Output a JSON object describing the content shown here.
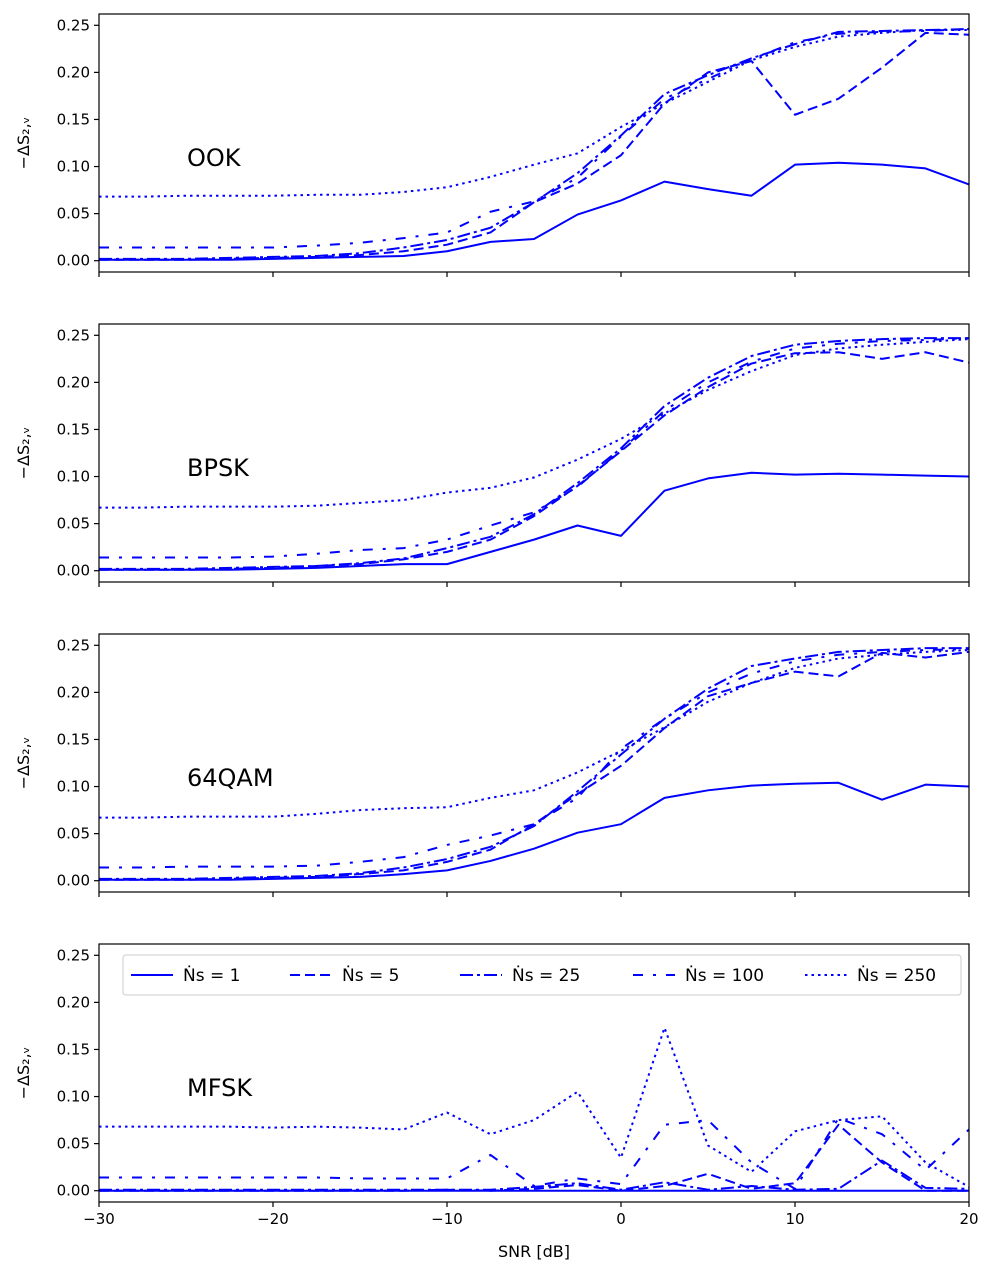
{
  "chart_data": {
    "type": "line",
    "xlabel": "SNR [dB]",
    "ylabel": "−ΔS₂,ᵥ",
    "xlim": [
      -30,
      20
    ],
    "ylim": [
      -0.012,
      0.262
    ],
    "xticks": [
      -30,
      -20,
      -10,
      0,
      10,
      20
    ],
    "xtick_labels": [
      "−30",
      "−20",
      "−10",
      "0",
      "10",
      "20"
    ],
    "yticks": [
      0.0,
      0.05,
      0.1,
      0.15,
      0.2,
      0.25
    ],
    "ytick_labels": [
      "0.00",
      "0.05",
      "0.10",
      "0.15",
      "0.20",
      "0.25"
    ],
    "x": [
      -30,
      -27.5,
      -25,
      -22.5,
      -20,
      -17.5,
      -15,
      -12.5,
      -10,
      -7.5,
      -5,
      -2.5,
      0,
      2.5,
      5,
      7.5,
      10,
      12.5,
      15,
      17.5,
      20
    ],
    "color": "#0000ff",
    "legend": {
      "location": "top",
      "entries": [
        {
          "label": "Ṅs = 1",
          "style": "solid"
        },
        {
          "label": "Ṅs = 5",
          "style": "dashed"
        },
        {
          "label": "Ṅs = 25",
          "style": "dashdot"
        },
        {
          "label": "Ṅs = 100",
          "style": "loosedashdot"
        },
        {
          "label": "Ṅs = 250",
          "style": "dotted"
        }
      ]
    },
    "panels": [
      {
        "label": "OOK",
        "series": [
          {
            "name": "Ns = 1",
            "values": [
              0.001,
              0.001,
              0.001,
              0.001,
              0.002,
              0.003,
              0.004,
              0.005,
              0.01,
              0.02,
              0.023,
              0.049,
              0.064,
              0.084,
              0.076,
              0.069,
              0.102,
              0.104,
              0.102,
              0.098,
              0.081
            ]
          },
          {
            "name": "Ns = 5",
            "values": [
              0.001,
              0.001,
              0.001,
              0.002,
              0.003,
              0.004,
              0.006,
              0.01,
              0.017,
              0.03,
              0.062,
              0.082,
              0.112,
              0.167,
              0.2,
              0.212,
              0.155,
              0.172,
              0.205,
              0.242,
              0.24
            ]
          },
          {
            "name": "Ns = 25",
            "values": [
              0.002,
              0.002,
              0.002,
              0.003,
              0.004,
              0.005,
              0.008,
              0.014,
              0.022,
              0.035,
              0.062,
              0.093,
              0.133,
              0.177,
              0.197,
              0.215,
              0.23,
              0.243,
              0.244,
              0.245,
              0.246
            ]
          },
          {
            "name": "Ns = 100",
            "values": [
              0.014,
              0.014,
              0.014,
              0.014,
              0.014,
              0.016,
              0.019,
              0.024,
              0.03,
              0.052,
              0.063,
              0.088,
              0.132,
              0.172,
              0.193,
              0.214,
              0.232,
              0.241,
              0.243,
              0.244,
              0.246
            ]
          },
          {
            "name": "Ns = 250",
            "values": [
              0.068,
              0.068,
              0.069,
              0.069,
              0.069,
              0.07,
              0.07,
              0.073,
              0.078,
              0.089,
              0.102,
              0.114,
              0.142,
              0.167,
              0.19,
              0.213,
              0.227,
              0.238,
              0.242,
              0.245,
              0.245
            ]
          }
        ]
      },
      {
        "label": "BPSK",
        "series": [
          {
            "name": "Ns = 1",
            "values": [
              0.001,
              0.001,
              0.001,
              0.001,
              0.002,
              0.003,
              0.005,
              0.007,
              0.007,
              0.02,
              0.033,
              0.048,
              0.037,
              0.085,
              0.098,
              0.104,
              0.102,
              0.103,
              0.102,
              0.101,
              0.1
            ]
          },
          {
            "name": "Ns = 5",
            "values": [
              0.001,
              0.001,
              0.001,
              0.002,
              0.003,
              0.005,
              0.007,
              0.012,
              0.02,
              0.033,
              0.058,
              0.09,
              0.127,
              0.165,
              0.195,
              0.22,
              0.231,
              0.232,
              0.225,
              0.232,
              0.221
            ]
          },
          {
            "name": "Ns = 25",
            "values": [
              0.002,
              0.002,
              0.002,
              0.003,
              0.004,
              0.005,
              0.008,
              0.013,
              0.024,
              0.036,
              0.06,
              0.093,
              0.13,
              0.175,
              0.205,
              0.228,
              0.24,
              0.244,
              0.246,
              0.247,
              0.247
            ]
          },
          {
            "name": "Ns = 100",
            "values": [
              0.014,
              0.014,
              0.014,
              0.014,
              0.015,
              0.018,
              0.022,
              0.024,
              0.033,
              0.048,
              0.062,
              0.089,
              0.128,
              0.17,
              0.2,
              0.222,
              0.236,
              0.241,
              0.244,
              0.245,
              0.247
            ]
          },
          {
            "name": "Ns = 250",
            "values": [
              0.067,
              0.067,
              0.068,
              0.068,
              0.068,
              0.069,
              0.072,
              0.075,
              0.083,
              0.088,
              0.099,
              0.118,
              0.14,
              0.167,
              0.192,
              0.212,
              0.229,
              0.236,
              0.24,
              0.243,
              0.246
            ]
          }
        ]
      },
      {
        "label": "64QAM",
        "series": [
          {
            "name": "Ns = 1",
            "values": [
              0.001,
              0.001,
              0.001,
              0.001,
              0.002,
              0.003,
              0.004,
              0.007,
              0.011,
              0.021,
              0.034,
              0.051,
              0.06,
              0.088,
              0.096,
              0.101,
              0.103,
              0.104,
              0.086,
              0.102,
              0.1
            ]
          },
          {
            "name": "Ns = 5",
            "values": [
              0.001,
              0.001,
              0.001,
              0.002,
              0.003,
              0.004,
              0.007,
              0.011,
              0.02,
              0.033,
              0.06,
              0.092,
              0.122,
              0.162,
              0.196,
              0.21,
              0.222,
              0.217,
              0.242,
              0.237,
              0.243
            ]
          },
          {
            "name": "Ns = 25",
            "values": [
              0.002,
              0.002,
              0.002,
              0.003,
              0.004,
              0.005,
              0.008,
              0.014,
              0.023,
              0.036,
              0.058,
              0.095,
              0.134,
              0.172,
              0.204,
              0.228,
              0.236,
              0.243,
              0.245,
              0.247,
              0.247
            ]
          },
          {
            "name": "Ns = 100",
            "values": [
              0.014,
              0.014,
              0.015,
              0.015,
              0.015,
              0.016,
              0.02,
              0.025,
              0.038,
              0.048,
              0.06,
              0.088,
              0.14,
              0.172,
              0.2,
              0.22,
              0.233,
              0.24,
              0.243,
              0.245,
              0.246
            ]
          },
          {
            "name": "Ns = 250",
            "values": [
              0.067,
              0.067,
              0.068,
              0.068,
              0.068,
              0.071,
              0.075,
              0.077,
              0.078,
              0.088,
              0.096,
              0.115,
              0.138,
              0.163,
              0.19,
              0.21,
              0.226,
              0.236,
              0.24,
              0.243,
              0.245
            ]
          }
        ]
      },
      {
        "label": "MFSK",
        "series": [
          {
            "name": "Ns = 1",
            "values": [
              0.0,
              0.0,
              0.0,
              0.0,
              0.0,
              0.0,
              0.0,
              0.0,
              0.0,
              0.0,
              0.0,
              0.0,
              0.0,
              0.0,
              0.0,
              0.0,
              0.0,
              0.0,
              0.0,
              0.0,
              0.0
            ]
          },
          {
            "name": "Ns = 5",
            "values": [
              0.0,
              0.0,
              0.0,
              0.0,
              0.0,
              0.0,
              0.0,
              0.0,
              0.001,
              0.0,
              0.002,
              0.006,
              0.0,
              0.005,
              0.018,
              0.002,
              0.008,
              0.07,
              0.03,
              0.0,
              0.0
            ]
          },
          {
            "name": "Ns = 25",
            "values": [
              0.001,
              0.001,
              0.001,
              0.001,
              0.001,
              0.001,
              0.001,
              0.001,
              0.001,
              0.001,
              0.004,
              0.008,
              0.001,
              0.009,
              0.001,
              0.005,
              0.001,
              0.002,
              0.032,
              0.003,
              0.002
            ]
          },
          {
            "name": "Ns = 100",
            "values": [
              0.014,
              0.014,
              0.014,
              0.014,
              0.014,
              0.014,
              0.013,
              0.013,
              0.013,
              0.038,
              0.005,
              0.013,
              0.007,
              0.07,
              0.075,
              0.03,
              0.002,
              0.077,
              0.06,
              0.022,
              0.065
            ]
          },
          {
            "name": "Ns = 250",
            "values": [
              0.068,
              0.068,
              0.068,
              0.068,
              0.067,
              0.068,
              0.067,
              0.065,
              0.083,
              0.06,
              0.075,
              0.105,
              0.035,
              0.173,
              0.048,
              0.02,
              0.063,
              0.075,
              0.079,
              0.03,
              0.004
            ]
          }
        ]
      }
    ]
  }
}
